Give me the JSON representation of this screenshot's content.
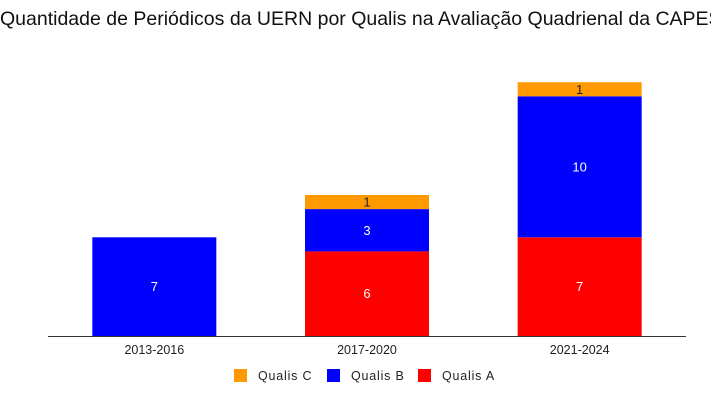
{
  "chart_data": {
    "type": "bar",
    "stacked": true,
    "title": "Quantidade de  Periódicos da UERN por Qualis na Avaliação Quadrienal da CAPES",
    "xlabel": "",
    "ylabel": "",
    "ylim": [
      0,
      18
    ],
    "grid": false,
    "legend_position": "bottom",
    "categories": [
      "2013-2016",
      "2017-2020",
      "2021-2024"
    ],
    "series": [
      {
        "name": "Qualis A",
        "values": [
          0,
          6,
          7
        ],
        "labels": [
          "",
          "6",
          "7"
        ],
        "color": "#ff0000",
        "label_color": "#ffffff"
      },
      {
        "name": "Qualis B",
        "values": [
          7,
          3,
          10
        ],
        "labels": [
          "7",
          "3",
          "10"
        ],
        "color": "#0000ff",
        "label_color": "#ffffff"
      },
      {
        "name": "Qualis C",
        "values": [
          0,
          1,
          1
        ],
        "labels": [
          "",
          "1",
          "1"
        ],
        "color": "#ff9900",
        "label_color": "#222222"
      }
    ],
    "legend_order": [
      "Qualis C",
      "Qualis B",
      "Qualis A"
    ]
  }
}
